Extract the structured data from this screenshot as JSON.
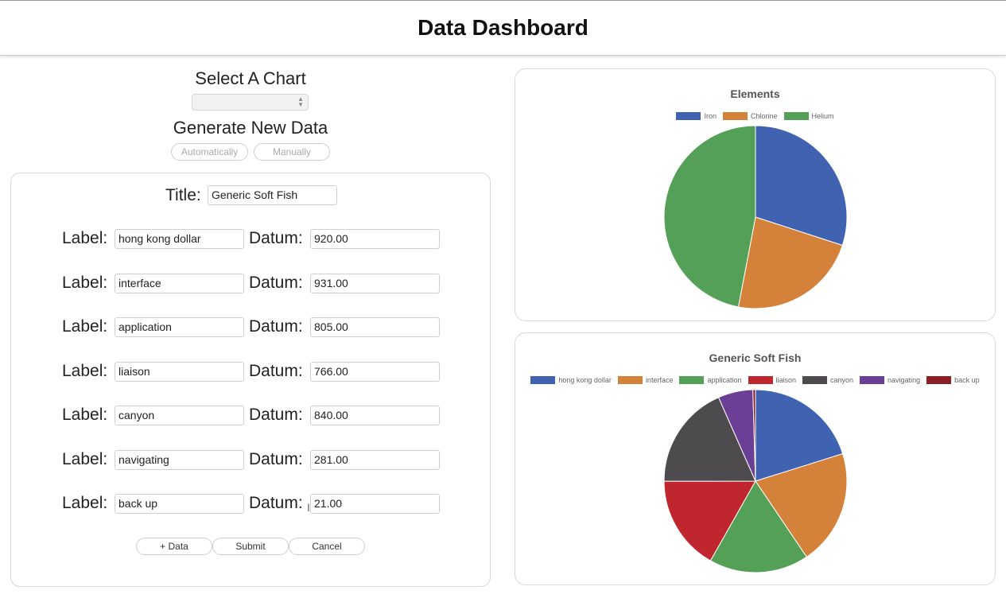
{
  "header": {
    "title": "Data Dashboard"
  },
  "controls": {
    "select_chart_label": "Select A Chart",
    "select_chart_value": "",
    "generate_label": "Generate New Data",
    "automatically_label": "Automatically",
    "manually_label": "Manually"
  },
  "form": {
    "title_label": "Title:",
    "title_value": "Generic Soft Fish",
    "label_text": "Label:",
    "datum_text": "Datum:",
    "rows": [
      {
        "label": "hong kong dollar",
        "datum": "920.00"
      },
      {
        "label": "interface",
        "datum": "931.00"
      },
      {
        "label": "application",
        "datum": "805.00"
      },
      {
        "label": "liaison",
        "datum": "766.00"
      },
      {
        "label": "canyon",
        "datum": "840.00"
      },
      {
        "label": "navigating",
        "datum": "281.00"
      },
      {
        "label": "back up",
        "datum": "21.00"
      }
    ],
    "add_data_label": "+ Data",
    "submit_label": "Submit",
    "cancel_label": "Cancel"
  },
  "colors": {
    "blue": "#3f63b0",
    "orange": "#d4823a",
    "green": "#54a057",
    "red": "#c0262d",
    "gray": "#4e4b4f",
    "purple": "#6c3f97",
    "darkred": "#8b1f25"
  },
  "chart_data": [
    {
      "type": "pie",
      "title": "Elements",
      "categories": [
        "Iron",
        "Chlorine",
        "Helium"
      ],
      "values": [
        30,
        23,
        47
      ],
      "colors": [
        "#3f63b0",
        "#d4823a",
        "#54a057"
      ],
      "legend": "top"
    },
    {
      "type": "pie",
      "title": "Generic Soft Fish",
      "categories": [
        "hong kong dollar",
        "interface",
        "application",
        "liaison",
        "canyon",
        "navigating",
        "back up"
      ],
      "values": [
        920,
        931,
        805,
        766,
        840,
        281,
        21
      ],
      "colors": [
        "#3f63b0",
        "#d4823a",
        "#54a057",
        "#c0262d",
        "#4e4b4f",
        "#6c3f97",
        "#8b1f25"
      ],
      "legend": "top"
    }
  ]
}
